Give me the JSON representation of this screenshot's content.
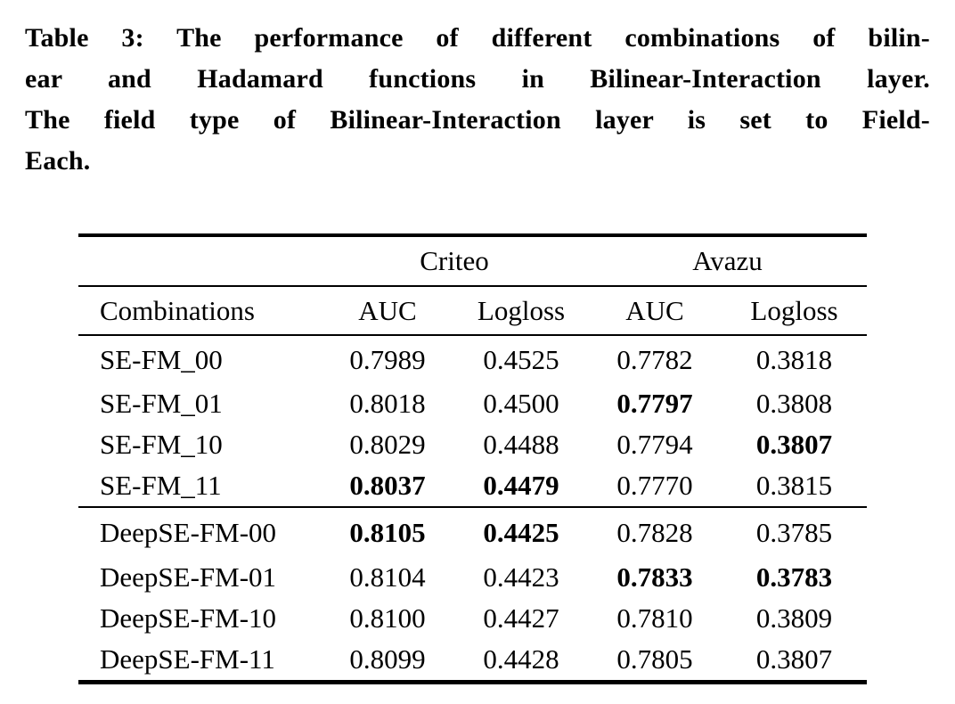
{
  "colors": {
    "text": "#000000",
    "background": "#ffffff",
    "rule": "#000000"
  },
  "caption": {
    "lines": [
      "Table 3: The performance of different combinations of bilin-",
      "ear and Hadamard functions in Bilinear-Interaction layer.",
      "The field type of Bilinear-Interaction layer is set to Field-",
      "Each."
    ]
  },
  "table": {
    "group_headers": {
      "criteo": "Criteo",
      "avazu": "Avazu"
    },
    "col_headers": {
      "combinations": "Combinations",
      "criteo_auc": "AUC",
      "criteo_logloss": "Logloss",
      "avazu_auc": "AUC",
      "avazu_logloss": "Logloss"
    },
    "rows": [
      {
        "label": "SE-FM_00",
        "cells": [
          {
            "v": "0.7989",
            "bold": false
          },
          {
            "v": "0.4525",
            "bold": false
          },
          {
            "v": "0.7782",
            "bold": false
          },
          {
            "v": "0.3818",
            "bold": false
          }
        ]
      },
      {
        "label": "SE-FM_01",
        "cells": [
          {
            "v": "0.8018",
            "bold": false
          },
          {
            "v": "0.4500",
            "bold": false
          },
          {
            "v": "0.7797",
            "bold": true
          },
          {
            "v": "0.3808",
            "bold": false
          }
        ]
      },
      {
        "label": "SE-FM_10",
        "cells": [
          {
            "v": "0.8029",
            "bold": false
          },
          {
            "v": "0.4488",
            "bold": false
          },
          {
            "v": "0.7794",
            "bold": false
          },
          {
            "v": "0.3807",
            "bold": true
          }
        ]
      },
      {
        "label": "SE-FM_11",
        "cells": [
          {
            "v": "0.8037",
            "bold": true
          },
          {
            "v": "0.4479",
            "bold": true
          },
          {
            "v": "0.7770",
            "bold": false
          },
          {
            "v": "0.3815",
            "bold": false
          }
        ]
      },
      {
        "label": "DeepSE-FM-00",
        "cells": [
          {
            "v": "0.8105",
            "bold": true
          },
          {
            "v": "0.4425",
            "bold": true
          },
          {
            "v": "0.7828",
            "bold": false
          },
          {
            "v": "0.3785",
            "bold": false
          }
        ]
      },
      {
        "label": "DeepSE-FM-01",
        "cells": [
          {
            "v": "0.8104",
            "bold": false
          },
          {
            "v": "0.4423",
            "bold": false
          },
          {
            "v": "0.7833",
            "bold": true
          },
          {
            "v": "0.3783",
            "bold": true
          }
        ]
      },
      {
        "label": "DeepSE-FM-10",
        "cells": [
          {
            "v": "0.8100",
            "bold": false
          },
          {
            "v": "0.4427",
            "bold": false
          },
          {
            "v": "0.7810",
            "bold": false
          },
          {
            "v": "0.3809",
            "bold": false
          }
        ]
      },
      {
        "label": "DeepSE-FM-11",
        "cells": [
          {
            "v": "0.8099",
            "bold": false
          },
          {
            "v": "0.4428",
            "bold": false
          },
          {
            "v": "0.7805",
            "bold": false
          },
          {
            "v": "0.3807",
            "bold": false
          }
        ]
      }
    ]
  }
}
